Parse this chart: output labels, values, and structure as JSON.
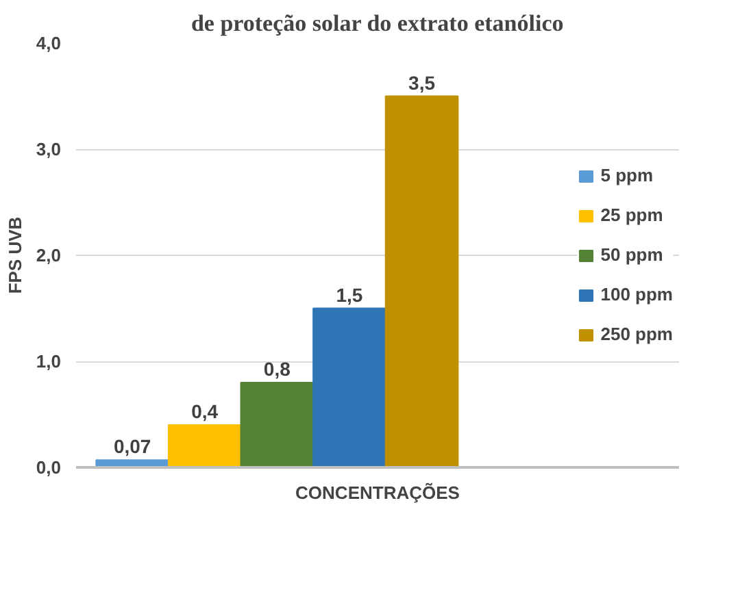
{
  "chart_data": {
    "type": "bar",
    "title": "de proteção solar do extrato etanólico",
    "xlabel": "CONCENTRAÇÕES",
    "ylabel": "FPS UVB",
    "categories": [
      null
    ],
    "series": [
      {
        "name": "5 ppm",
        "color": "#5b9bd5",
        "values": [
          0.07
        ],
        "value_labels": [
          "0,07"
        ]
      },
      {
        "name": "25 ppm",
        "color": "#ffc000",
        "values": [
          0.4
        ],
        "value_labels": [
          "0,4"
        ]
      },
      {
        "name": "50 ppm",
        "color": "#548235",
        "values": [
          0.8
        ],
        "value_labels": [
          "0,8"
        ]
      },
      {
        "name": "100 ppm",
        "color": "#2e75b6",
        "values": [
          1.5
        ],
        "value_labels": [
          "1,5"
        ]
      },
      {
        "name": "250 ppm",
        "color": "#bf9000",
        "values": [
          3.5
        ],
        "value_labels": [
          "3,5"
        ]
      }
    ],
    "ylim": [
      0,
      4
    ],
    "yticks": [
      {
        "value": 0,
        "label": "0,0"
      },
      {
        "value": 1,
        "label": "1,0"
      },
      {
        "value": 2,
        "label": "2,0"
      },
      {
        "value": 3,
        "label": "3,0"
      },
      {
        "value": 4,
        "label": "4,0"
      }
    ],
    "grid": "y",
    "legend": "right"
  }
}
